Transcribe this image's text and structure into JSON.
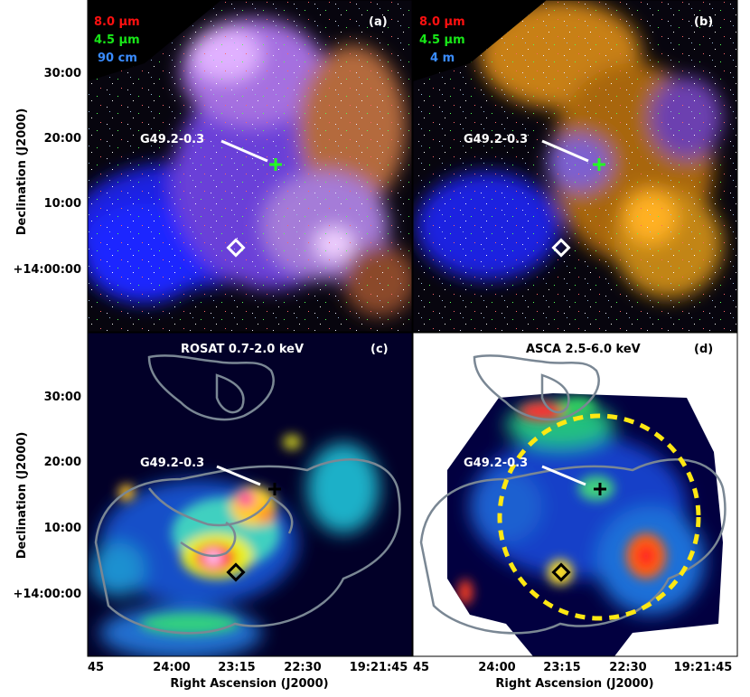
{
  "axes": {
    "y_label": "Declination (J2000)",
    "x_label": "Right Ascension (J2000)",
    "y_ticks": [
      "30:00",
      "20:00",
      "10:00",
      "+14:00:00"
    ],
    "x_ticks": [
      "45",
      "24:00",
      "23:15",
      "22:30",
      "19:21:45"
    ]
  },
  "panels": {
    "a": {
      "tag": "(a)",
      "legend": [
        {
          "text": "8.0 μm",
          "color": "#ff1010"
        },
        {
          "text": "4.5 μm",
          "color": "#18e818"
        },
        {
          "text": "90 cm",
          "color": "#3a8cff"
        }
      ],
      "source_label": "G49.2-0.3"
    },
    "b": {
      "tag": "(b)",
      "legend": [
        {
          "text": "8.0 μm",
          "color": "#ff1010"
        },
        {
          "text": "4.5 μm",
          "color": "#18e818"
        },
        {
          "text": "4 m",
          "color": "#3a8cff"
        }
      ],
      "source_label": "G49.2-0.3"
    },
    "c": {
      "tag": "(c)",
      "title": "ROSAT 0.7-2.0 keV",
      "source_label": "G49.2-0.3"
    },
    "d": {
      "tag": "(d)",
      "title": "ASCA 2.5-6.0 keV",
      "source_label": "G49.2-0.3"
    }
  },
  "colors": {
    "contour": "#7a8794",
    "circle": "#ffe812",
    "marker_cross_ir": "#22ff22"
  }
}
